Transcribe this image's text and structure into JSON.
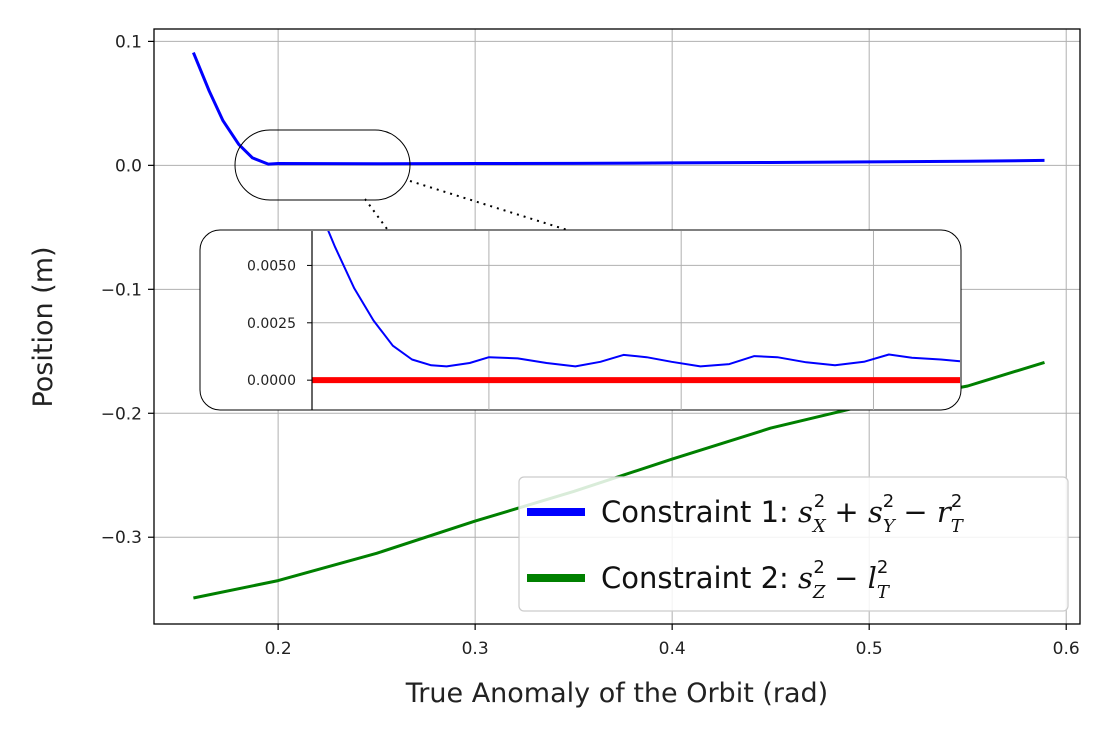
{
  "chart_data": {
    "type": "line",
    "xlabel": "True Anomaly of the Orbit (rad)",
    "ylabel": "Position (m)",
    "xlim": [
      0.137,
      0.607
    ],
    "ylim": [
      -0.37,
      0.11
    ],
    "xticks": [
      0.2,
      0.3,
      0.4,
      0.5,
      0.6
    ],
    "xtick_labels": [
      "0.2",
      "0.3",
      "0.4",
      "0.5",
      "0.6"
    ],
    "yticks": [
      0.1,
      0.0,
      -0.1,
      -0.2,
      -0.3
    ],
    "ytick_labels": [
      "0.1",
      "0.0",
      "−0.1",
      "−0.2",
      "−0.3"
    ],
    "grid": true,
    "legend_placement": "lower-right",
    "colors": {
      "series1": "#0000ff",
      "series2": "#008000",
      "inset_reference": "#ff0000",
      "grid": "#b0b0b0"
    },
    "series": [
      {
        "name": "Constraint 1: s_X^2 + s_Y^2 − r_T^2",
        "legend_prefix": "Constraint 1: ",
        "x": [
          0.157,
          0.165,
          0.172,
          0.18,
          0.187,
          0.195,
          0.2,
          0.25,
          0.3,
          0.35,
          0.4,
          0.45,
          0.5,
          0.55,
          0.589
        ],
        "values": [
          0.091,
          0.06,
          0.036,
          0.017,
          0.006,
          0.001,
          0.0015,
          0.0013,
          0.0015,
          0.0016,
          0.002,
          0.0023,
          0.0028,
          0.0033,
          0.004
        ]
      },
      {
        "name": "Constraint 2: s_Z^2 − l_T^2",
        "legend_prefix": "Constraint 2: ",
        "x": [
          0.157,
          0.2,
          0.25,
          0.3,
          0.35,
          0.4,
          0.45,
          0.5,
          0.55,
          0.589
        ],
        "values": [
          -0.349,
          -0.335,
          -0.313,
          -0.287,
          -0.263,
          -0.237,
          -0.212,
          -0.193,
          -0.178,
          -0.159
        ]
      }
    ],
    "inset": {
      "xlim": [
        0.208,
        0.545
      ],
      "ylim": [
        -0.0013,
        0.0065
      ],
      "yticks": [
        0.0,
        0.0025,
        0.005
      ],
      "ytick_labels": [
        "0.0000",
        "0.0025",
        "0.0050"
      ],
      "grid": true,
      "series_blue_x": [
        0.215,
        0.22,
        0.23,
        0.24,
        0.25,
        0.26,
        0.27,
        0.278,
        0.29,
        0.3,
        0.315,
        0.33,
        0.345,
        0.358,
        0.37,
        0.382,
        0.395,
        0.41,
        0.425,
        0.438,
        0.45,
        0.465,
        0.48,
        0.495,
        0.508,
        0.52,
        0.535,
        0.545
      ],
      "series_blue_values": [
        0.0068,
        0.0058,
        0.004,
        0.0026,
        0.0015,
        0.0009,
        0.00065,
        0.0006,
        0.00075,
        0.001,
        0.00095,
        0.00075,
        0.0006,
        0.0008,
        0.0011,
        0.001,
        0.0008,
        0.0006,
        0.0007,
        0.00105,
        0.001,
        0.00078,
        0.00065,
        0.0008,
        0.00112,
        0.00098,
        0.0009,
        0.00082
      ],
      "reference_value": 0.0
    }
  }
}
